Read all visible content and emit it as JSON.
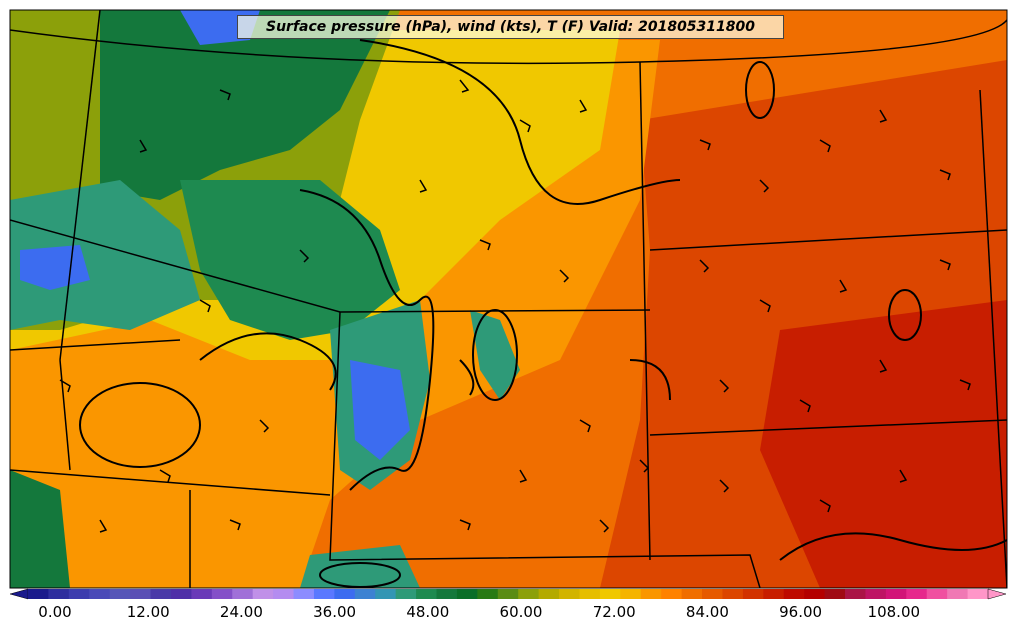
{
  "title": "Surface pressure (hPa), wind (kts), T (F) Valid: 201805311800",
  "colorbar": {
    "ticks": [
      "0.00",
      "12.00",
      "24.00",
      "36.00",
      "48.00",
      "60.00",
      "72.00",
      "84.00",
      "96.00",
      "108.00"
    ],
    "colors": [
      "#1a1a8c",
      "#2e2e9e",
      "#3c3cae",
      "#4a4ab8",
      "#5656b8",
      "#5a4fb5",
      "#4a3aa8",
      "#4f2fa8",
      "#6a3ab8",
      "#8450c8",
      "#a070d8",
      "#c090e8",
      "#b48cf0",
      "#8c8cff",
      "#5a78ff",
      "#3c6cf0",
      "#3c82d2",
      "#3296b4",
      "#2e9a78",
      "#1e8a50",
      "#14783c",
      "#0a6e28",
      "#287a14",
      "#5a8c14",
      "#8ca00a",
      "#b4aa00",
      "#d2b400",
      "#e6be00",
      "#f0c800",
      "#f5b400",
      "#fa9600",
      "#ff8200",
      "#f06e00",
      "#e65a00",
      "#dc4600",
      "#d23200",
      "#c81e00",
      "#be0a00",
      "#b40000",
      "#a00a14",
      "#aa1446",
      "#be1464",
      "#d21478",
      "#e6288c",
      "#f050a0",
      "#f078b4",
      "#ff96c8"
    ]
  },
  "map_colors": {
    "cold": "#3c6cf0",
    "cool": "#2e9a78",
    "mild_green": "#14783c",
    "olive": "#8ca00a",
    "yellow": "#e6be00",
    "orange": "#fa9600",
    "dark_orange": "#f06e00",
    "red": "#dc4600",
    "deep_red": "#c81e00",
    "frame": "#000000"
  }
}
